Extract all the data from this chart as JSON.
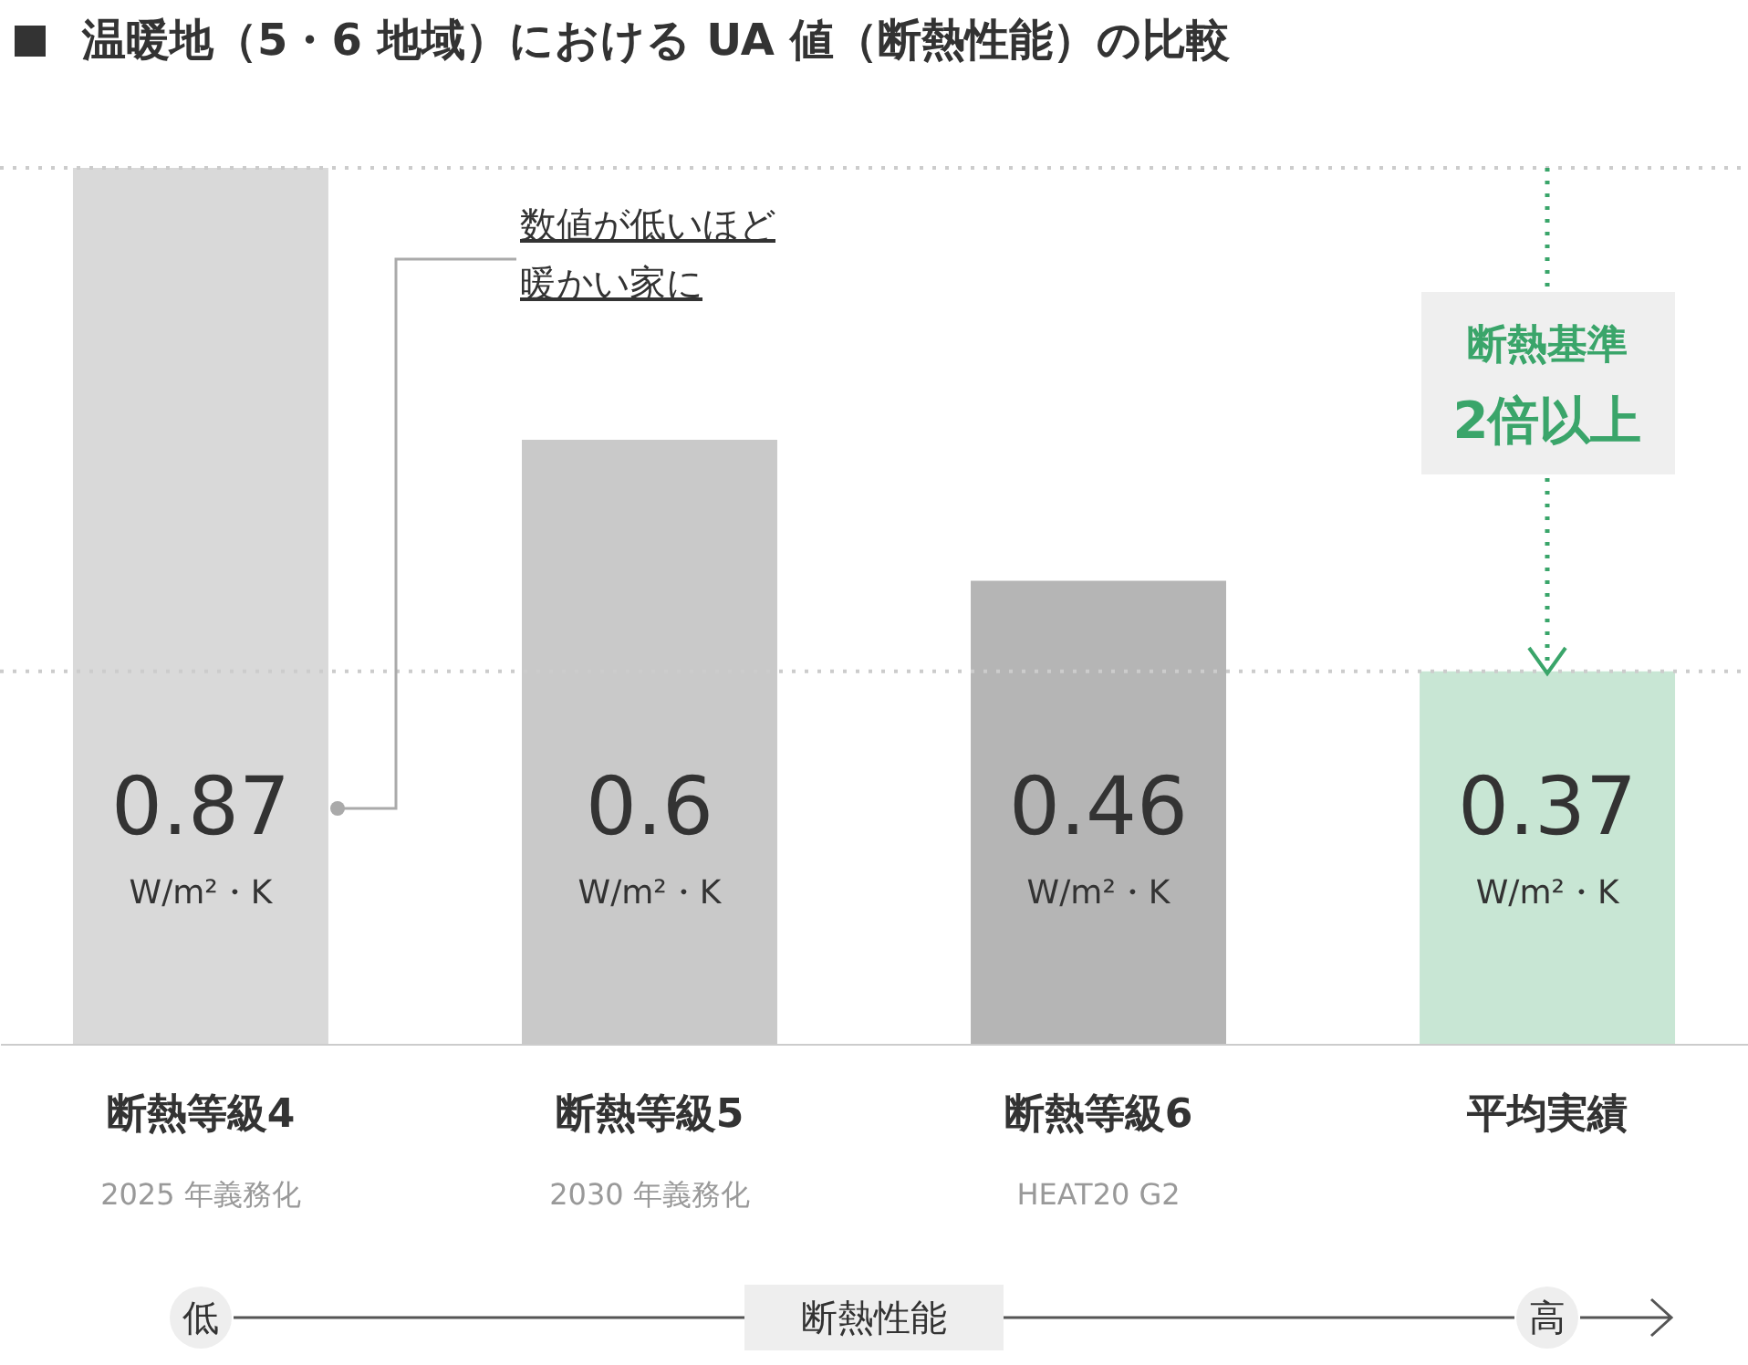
{
  "chart_data": {
    "type": "bar",
    "title": "温暖地（5・6 地域）における UA 値（断熱性能）の比較",
    "categories": [
      "断熱等級4\n2025 年義務化",
      "断熱等級5\n2030 年義務化",
      "断熱等級6\nHEAT20 G2",
      "平均実績"
    ],
    "values": [
      0.87,
      0.6,
      0.46,
      0.37
    ],
    "colors": [
      "#d9d9d9",
      "#c9c9c9",
      "#b5b5b5",
      "#c8e6d4"
    ],
    "data_labels": true,
    "tick_labels": "x",
    "ref_lines": [
      {
        "axis": "y",
        "value": 0.87,
        "color": "#cccccc",
        "line_style": "dotted"
      },
      {
        "axis": "y",
        "value": 0.37,
        "color": "#cccccc",
        "line_style": "dotted"
      }
    ],
    "annotations": [
      "数値が低いほど暖かい家に",
      "断熱基準2倍以上",
      "低",
      "断熱性能",
      "高",
      "W/m²・K",
      "W/m²・K",
      "W/m²・K",
      "W/m²・K"
    ]
  }
}
